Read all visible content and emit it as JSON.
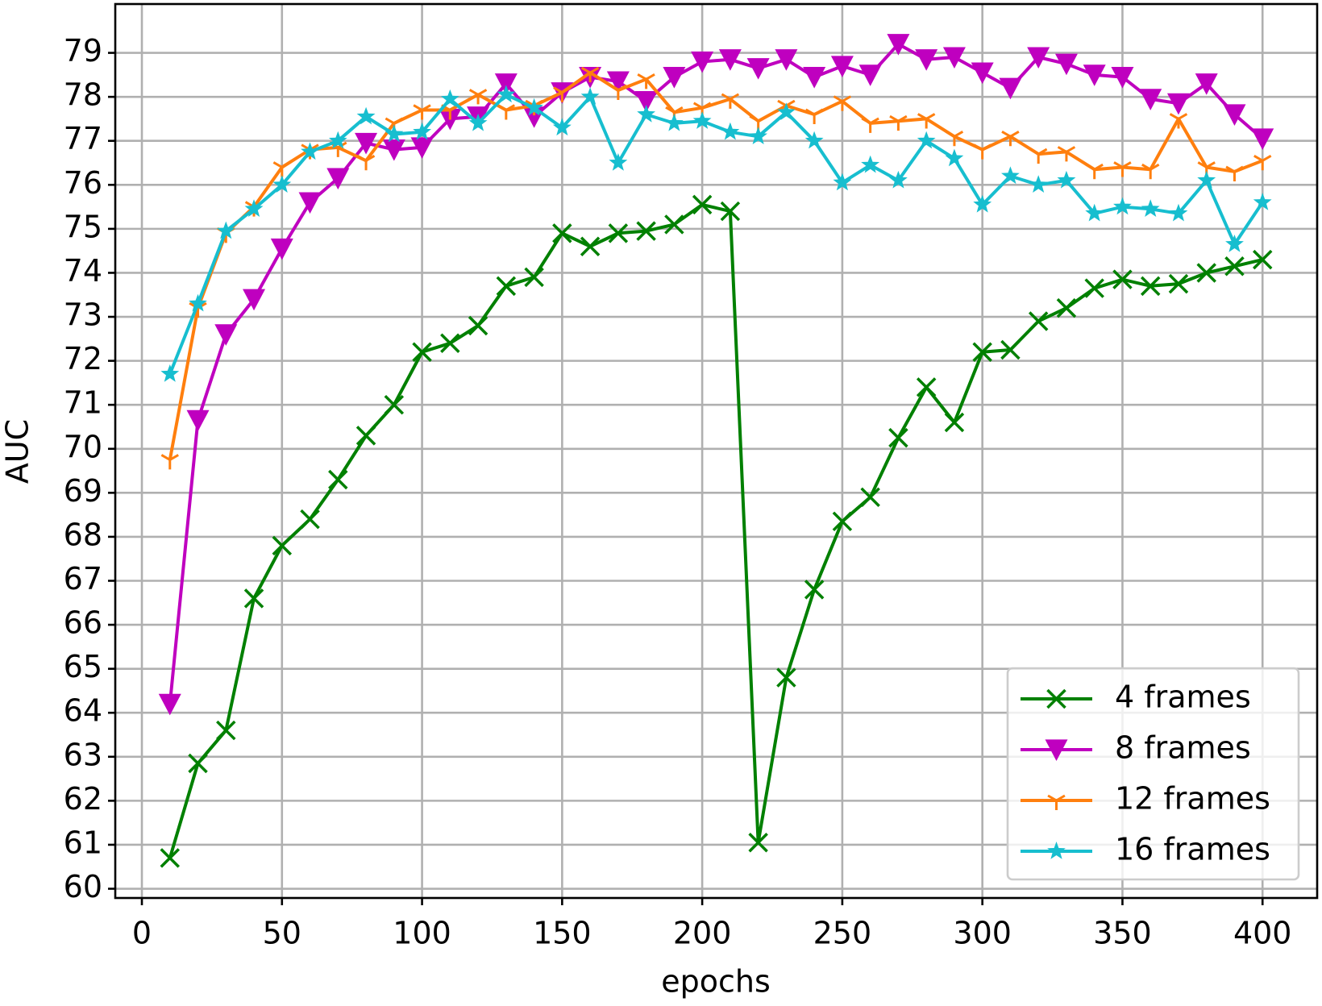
{
  "chart_data": {
    "type": "line",
    "xlabel": "epochs",
    "ylabel": "AUC",
    "x": [
      10,
      20,
      30,
      40,
      50,
      60,
      70,
      80,
      90,
      100,
      110,
      120,
      130,
      140,
      150,
      160,
      170,
      180,
      190,
      200,
      210,
      220,
      230,
      240,
      250,
      260,
      270,
      280,
      290,
      300,
      310,
      320,
      330,
      340,
      350,
      360,
      370,
      380,
      390,
      400
    ],
    "series": [
      {
        "name": "4 frames",
        "color": "#008000",
        "marker": "x",
        "values": [
          60.7,
          62.85,
          63.6,
          66.6,
          67.8,
          68.4,
          69.3,
          70.3,
          71.0,
          72.2,
          72.4,
          72.8,
          73.7,
          73.9,
          74.9,
          74.6,
          74.9,
          74.95,
          75.1,
          75.55,
          75.4,
          61.05,
          64.8,
          66.8,
          68.35,
          68.9,
          70.25,
          71.4,
          70.6,
          72.2,
          72.25,
          72.9,
          73.2,
          73.65,
          73.85,
          73.7,
          73.75,
          74.0,
          74.15,
          74.3
        ]
      },
      {
        "name": "8 frames",
        "color": "#bf00bf",
        "marker": "triangle_down",
        "values": [
          64.2,
          70.65,
          72.6,
          73.4,
          74.55,
          75.6,
          76.15,
          76.95,
          76.8,
          76.85,
          77.5,
          77.55,
          78.3,
          77.55,
          78.1,
          78.45,
          78.35,
          77.9,
          78.45,
          78.8,
          78.85,
          78.65,
          78.85,
          78.45,
          78.7,
          78.5,
          79.2,
          78.85,
          78.9,
          78.55,
          78.2,
          78.9,
          78.75,
          78.5,
          78.45,
          77.95,
          77.85,
          78.3,
          77.6,
          77.05
        ]
      },
      {
        "name": "12 frames",
        "color": "#ff7f0e",
        "marker": "tri_down",
        "values": [
          69.75,
          73.2,
          74.9,
          75.5,
          76.4,
          76.8,
          76.85,
          76.55,
          77.4,
          77.7,
          77.7,
          78.05,
          77.7,
          77.8,
          78.1,
          78.55,
          78.15,
          78.4,
          77.65,
          77.75,
          77.95,
          77.45,
          77.8,
          77.6,
          77.9,
          77.4,
          77.45,
          77.5,
          77.1,
          76.8,
          77.1,
          76.7,
          76.75,
          76.35,
          76.4,
          76.35,
          77.5,
          76.4,
          76.3,
          76.55
        ]
      },
      {
        "name": "16 frames",
        "color": "#17becf",
        "marker": "star",
        "values": [
          71.7,
          73.3,
          74.95,
          75.45,
          76.0,
          76.75,
          77.0,
          77.55,
          77.15,
          77.2,
          77.95,
          77.4,
          78.05,
          77.75,
          77.3,
          78.0,
          76.5,
          77.6,
          77.4,
          77.45,
          77.2,
          77.1,
          77.65,
          77.0,
          76.05,
          76.45,
          76.1,
          77.0,
          76.6,
          75.55,
          76.2,
          76.0,
          76.1,
          75.35,
          75.5,
          75.45,
          75.35,
          76.1,
          74.65,
          75.6
        ]
      }
    ],
    "xlim": [
      -9.5,
      419.5
    ],
    "ylim": [
      59.79,
      80.11
    ],
    "xticks": [
      0,
      50,
      100,
      150,
      200,
      250,
      300,
      350,
      400
    ],
    "yticks": [
      60,
      61,
      62,
      63,
      64,
      65,
      66,
      67,
      68,
      69,
      70,
      71,
      72,
      73,
      74,
      75,
      76,
      77,
      78,
      79
    ],
    "grid": true,
    "legend": "lower right"
  }
}
